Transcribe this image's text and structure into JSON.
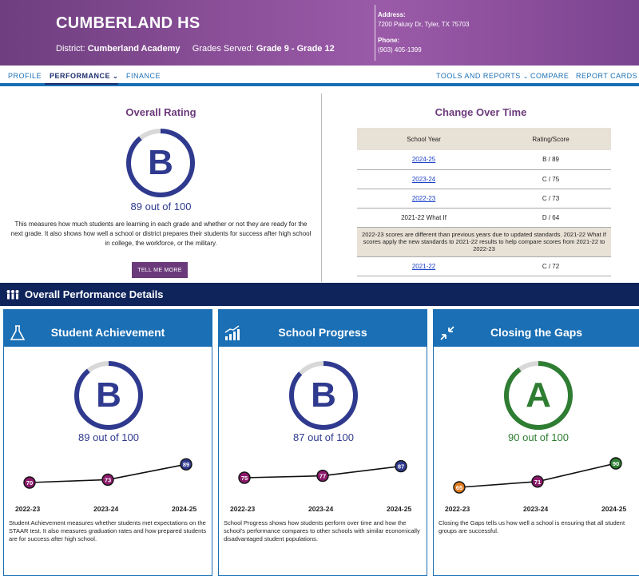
{
  "header": {
    "school_name": "CUMBERLAND HS",
    "district_label": "District:",
    "district_name": "Cumberland Academy",
    "grades_label": "Grades Served:",
    "grades_value": "Grade 9 - Grade 12",
    "address_label": "Address:",
    "address_value": "7200 Paluxy Dr, Tyler, TX 75703",
    "phone_label": "Phone:",
    "phone_value": "(903) 405-1399"
  },
  "nav": {
    "profile": "PROFILE",
    "performance": "PERFORMANCE",
    "finance": "FINANCE",
    "tools": "TOOLS AND REPORTS",
    "compare": "COMPARE",
    "report_cards": "REPORT CARDS"
  },
  "overall": {
    "title": "Overall Rating",
    "grade": "B",
    "score_text": "89 out of 100",
    "score_fraction": 0.89,
    "description": "This measures how much students are learning in each grade and whether or not they are ready for the next grade. It also shows how well a school or district prepares their students for success after high school in college, the workforce, or the military.",
    "button": "TELL ME MORE"
  },
  "change_over_time": {
    "title": "Change Over Time",
    "headers": [
      "School Year",
      "Rating/Score"
    ],
    "rows": [
      {
        "year": "2024-25",
        "link": true,
        "score": "B / 89"
      },
      {
        "year": "2023-24",
        "link": true,
        "score": "C / 75"
      },
      {
        "year": "2022-23",
        "link": true,
        "score": "C / 73"
      },
      {
        "year": "2021-22 What If",
        "link": false,
        "score": "D / 64"
      }
    ],
    "note": "2022-23 scores are different than previous years due to updated standards. 2021-22 What If scores apply the new standards to 2021-22 results to help compare scores from 2021-22 to 2022-23",
    "last_row": {
      "year": "2021-22",
      "link": true,
      "score": "C / 72"
    }
  },
  "details": {
    "title": "Overall Performance Details"
  },
  "cards": [
    {
      "title": "Student Achievement",
      "icon": "flask-icon",
      "grade": "B",
      "score_text": "89 out of 100",
      "score_fraction": 0.89,
      "ring_color": "#2f3a8f",
      "years": [
        "2022-23",
        "2023-24",
        "2024-25"
      ],
      "values": [
        70,
        73,
        89
      ],
      "point_labels": [
        "70",
        "73",
        "89"
      ],
      "point_colors": [
        "#8b1a6b",
        "#8b1a6b",
        "#2f3a8f"
      ],
      "description": "Student Achievement measures whether students met expectations on the STAAR test. It also measures graduation rates and how prepared students are for success after high school."
    },
    {
      "title": "School Progress",
      "icon": "bar-growth-icon",
      "grade": "B",
      "score_text": "87 out of 100",
      "score_fraction": 0.87,
      "ring_color": "#2f3a8f",
      "years": [
        "2022-23",
        "2023-24",
        "2024-25"
      ],
      "values": [
        75,
        77,
        87
      ],
      "point_labels": [
        "75",
        "77",
        "87"
      ],
      "point_colors": [
        "#8b1a6b",
        "#8b1a6b",
        "#2f3a8f"
      ],
      "description": "School Progress shows how students perform over time and how the school's performance compares to other schools with similar economically disadvantaged student populations."
    },
    {
      "title": "Closing the Gaps",
      "icon": "arrows-inward-icon",
      "grade": "A",
      "score_text": "90 out of 100",
      "score_fraction": 0.9,
      "ring_color": "#2e7d32",
      "years": [
        "2022-23",
        "2023-24",
        "2024-25"
      ],
      "values": [
        65,
        71,
        90
      ],
      "point_labels": [
        "65",
        "71",
        "90"
      ],
      "point_colors": [
        "#e07a1f",
        "#8b1a6b",
        "#2e7d32"
      ],
      "description": "Closing the Gaps tells us how well a school is ensuring that all student groups are successful."
    }
  ]
}
